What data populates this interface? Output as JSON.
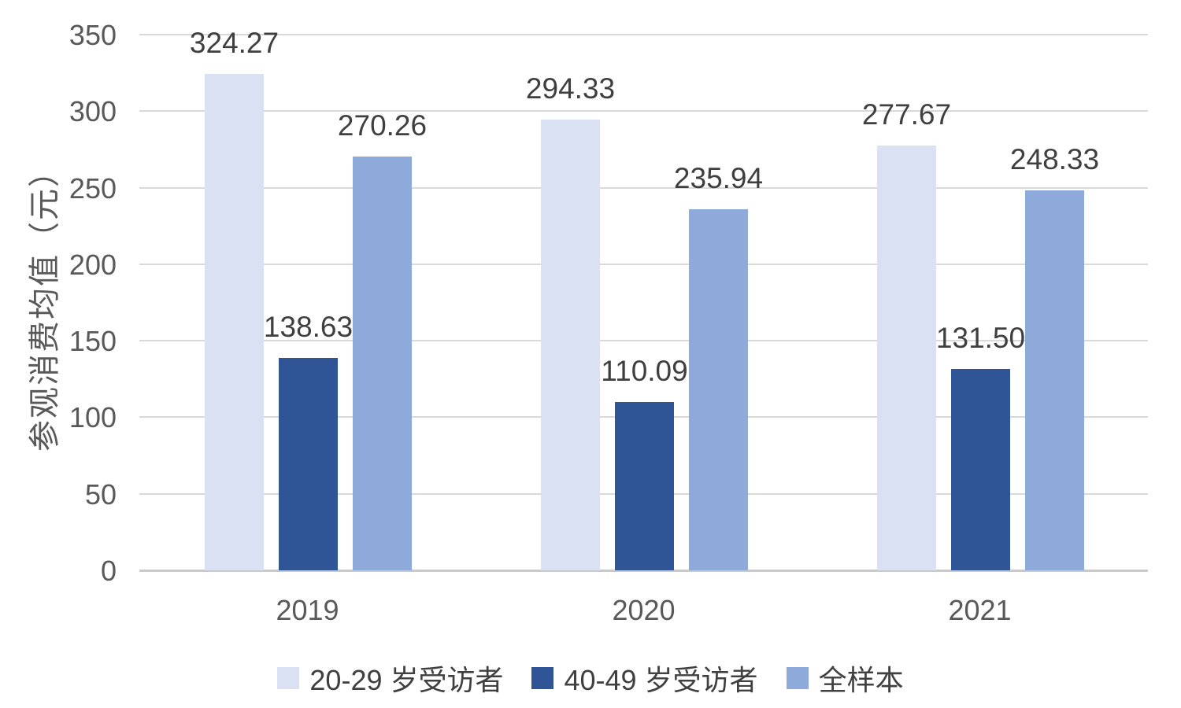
{
  "chart_data": {
    "type": "bar",
    "title": "",
    "xlabel": "",
    "ylabel": "参观消费均值（元）",
    "categories": [
      "2019",
      "2020",
      "2021"
    ],
    "series": [
      {
        "name": "20-29 岁受访者",
        "color": "#D9E1F2",
        "values": [
          324.27,
          294.33,
          277.67
        ],
        "value_labels": [
          "324.27",
          "294.33",
          "277.67"
        ]
      },
      {
        "name": "40-49 岁受访者",
        "color": "#2F5597",
        "values": [
          138.63,
          110.09,
          131.5
        ],
        "value_labels": [
          "138.63",
          "110.09",
          "131.50"
        ]
      },
      {
        "name": "全样本",
        "color": "#8EAADB",
        "values": [
          270.26,
          235.94,
          248.33
        ],
        "value_labels": [
          "270.26",
          "235.94",
          "248.33"
        ]
      }
    ],
    "ylim": [
      0,
      350
    ],
    "ytick_step": 50,
    "ytick_labels": [
      "0",
      "50",
      "100",
      "150",
      "200",
      "250",
      "300",
      "350"
    ],
    "grid": true,
    "legend_position": "bottom",
    "colors": {
      "gridline": "#d9d9d9",
      "axis_baseline": "#c9c9c9",
      "tick_text": "#595959",
      "data_label_text": "#3f3f3f",
      "legend_text": "#404040",
      "background": "#ffffff"
    }
  }
}
